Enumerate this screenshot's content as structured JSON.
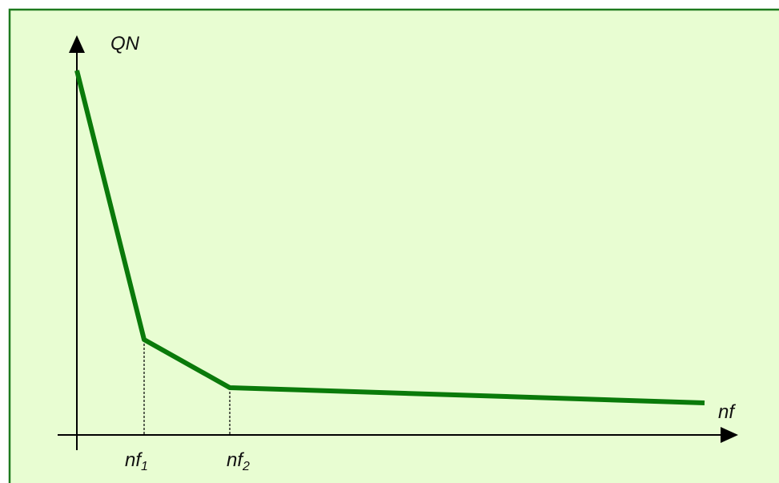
{
  "y_axis_label": "QN",
  "x_axis_label": "nf",
  "x_marks": [
    {
      "base": "nf",
      "sub": "1"
    },
    {
      "base": "nf",
      "sub": "2"
    }
  ]
}
